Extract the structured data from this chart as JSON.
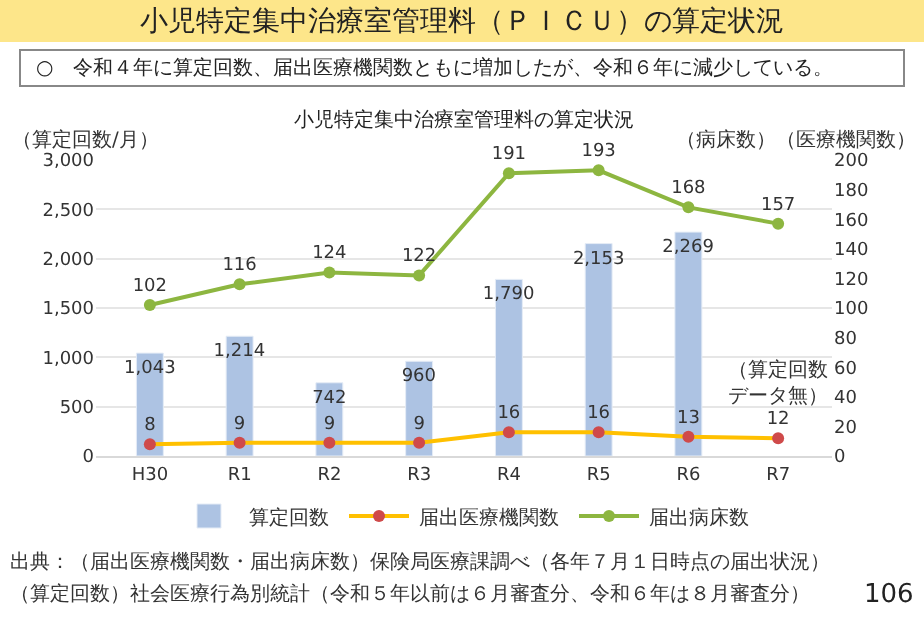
{
  "chart_data": {
    "type": "bar",
    "title": "小児特定集中治療室管理料（ＰＩＣＵ）の算定状況",
    "subtitle": "○　令和４年に算定回数、届出医療機関数ともに増加したが、令和６年に減少している。",
    "ylabel": "（算定回数/月）",
    "y2label": "（病床数）（医療機関数）",
    "categories": [
      "H30",
      "R1",
      "R2",
      "R3",
      "R4",
      "R5",
      "R6",
      "R7"
    ],
    "series": [
      {
        "name": "算定回数",
        "color": "#adc3e3",
        "values": [
          1043,
          1214,
          742,
          960,
          1790,
          2153,
          2269,
          null
        ],
        "value_labels": [
          "1,043",
          "1,214",
          "742",
          "960",
          "1,790",
          "2,153",
          "2,269",
          null
        ]
      },
      {
        "name": "届出医療機関数",
        "type": "line",
        "axis": "y2",
        "color": "#ffc000",
        "colors": [
          "#cf4a4a",
          "#cf4a4a",
          "#cf4a4a",
          "#cf4a4a",
          "#cf4a4a",
          "#cf4a4a",
          "#cf4a4a",
          "#cf4a4a"
        ],
        "values": [
          8,
          9,
          9,
          9,
          16,
          16,
          13,
          12
        ],
        "value_labels": [
          "8",
          "9",
          "9",
          "9",
          "16",
          "16",
          "13",
          "12"
        ]
      },
      {
        "name": "届出病床数",
        "type": "line",
        "axis": "y2",
        "color": "#8db640",
        "values": [
          102,
          116,
          124,
          122,
          191,
          193,
          168,
          157
        ],
        "value_labels": [
          "102",
          "116",
          "124",
          "122",
          "191",
          "193",
          "168",
          "157"
        ]
      }
    ],
    "ylim": [
      0,
      3000
    ],
    "yticks": [
      0,
      500,
      {
        "value": 1000,
        "label": "1,000"
      },
      {
        "value": 1500,
        "label": "1,500"
      },
      {
        "value": 2000,
        "label": "2,000"
      },
      {
        "value": 2500,
        "label": "2,500"
      },
      {
        "value": 3000,
        "label": "3,000"
      }
    ],
    "y2lim": [
      0,
      200
    ],
    "y2ticks": [
      0,
      20,
      40,
      60,
      80,
      100,
      120,
      140,
      160,
      180,
      200
    ],
    "grid": "y",
    "legend": "bottom",
    "marker": "circle",
    "annotations": [
      "小児特定集中治療室管理料の算定状況",
      "（算定回数データ無）",
      "出典：（届出医療機関数・届出病床数）保険局医療課調べ（各年７月１日時点の届出状況）",
      "（算定回数）社会医療行為別統計（令和５年以前は６月審査分、令和６年は８月審査分）",
      "106"
    ]
  }
}
